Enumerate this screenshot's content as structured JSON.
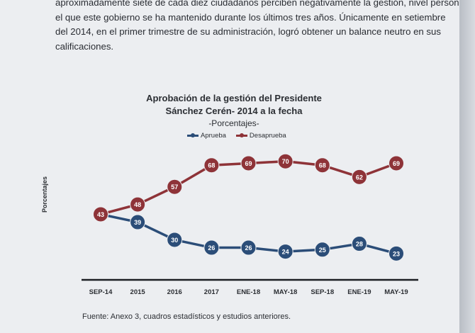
{
  "paragraph": {
    "lines": [
      "aproximadamente siete de cada diez ciudadanos perciben negativamente la gestión, nivel personal,",
      "el que este gobierno se ha mantenido durante los últimos tres años. Únicamente en setiembre",
      "del 2014, en el primer trimestre de su administración, logró obtener un balance neutro en sus",
      "calificaciones."
    ]
  },
  "chart_data": {
    "type": "line",
    "title_line1": "Aprobación de la gestión del Presidente",
    "title_line2": "Sánchez Cerén- 2014 a la fecha",
    "subtitle": "-Porcentajes-",
    "ylabel": "Porcentajes",
    "xlabel": "",
    "categories": [
      "SEP-14",
      "2015",
      "2016",
      "2017",
      "ENE-18",
      "MAY-18",
      "SEP-18",
      "ENE-19",
      "MAY-19"
    ],
    "series": [
      {
        "name": "Aprueba",
        "color": "#2b4d78",
        "values": [
          43,
          39,
          30,
          26,
          26,
          24,
          25,
          28,
          23
        ]
      },
      {
        "name": "Desaprueba",
        "color": "#8e3338",
        "values": [
          43,
          48,
          57,
          68,
          69,
          70,
          68,
          62,
          69
        ]
      }
    ],
    "ylim": [
      15,
      80
    ],
    "legend_position": "top-center",
    "grid": false
  },
  "source": "Fuente: Anexo 3, cuadros estadísticos y estudios anteriores."
}
